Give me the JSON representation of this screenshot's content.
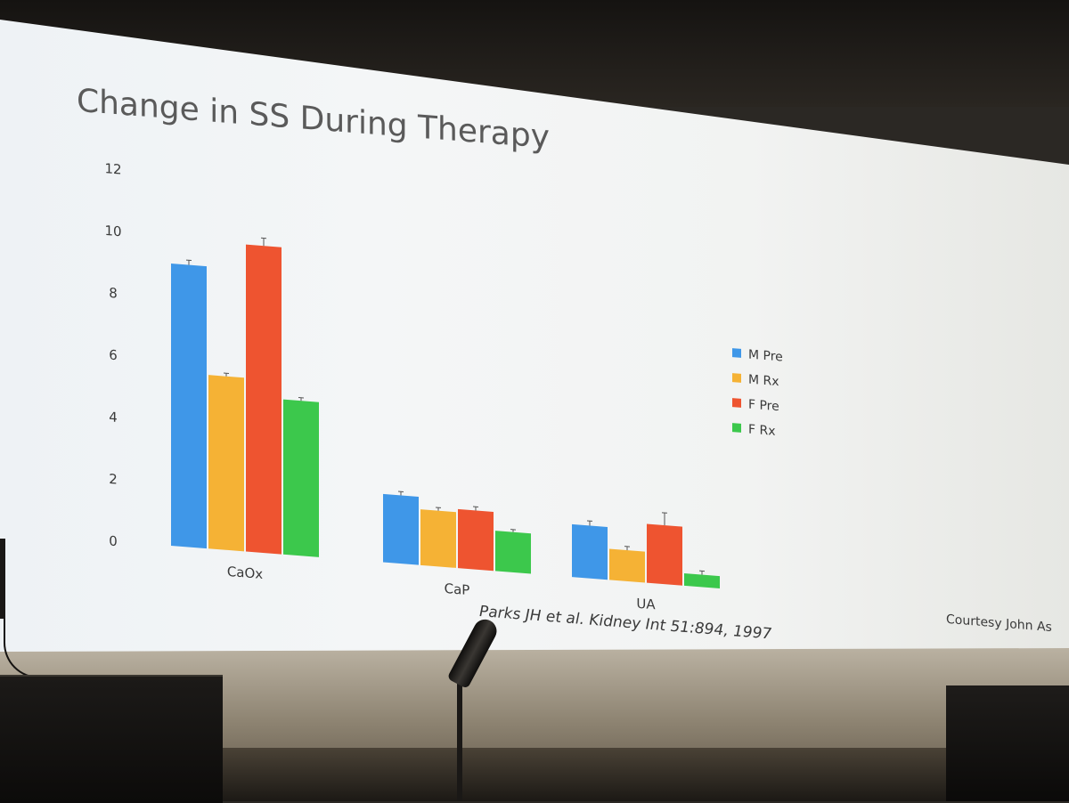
{
  "slide": {
    "title": "Change in SS During Therapy",
    "citation": "Parks JH et al. Kidney Int 51:894, 1997",
    "credit": "Courtesy John As"
  },
  "colors": {
    "M Pre": "#3f97e8",
    "M Rx": "#f5b235",
    "F Pre": "#ee5430",
    "F Rx": "#3cc84c"
  },
  "chart_data": {
    "type": "bar",
    "title": "Change in SS During Therapy",
    "xlabel": "",
    "ylabel": "",
    "ylim": [
      0,
      12
    ],
    "yticks": [
      "0",
      "2",
      "4",
      "6",
      "8",
      "10",
      "12"
    ],
    "categories": [
      "CaOx",
      "CaP",
      "UA"
    ],
    "series": [
      {
        "name": "M Pre",
        "values": [
          9.1,
          2.2,
          1.7
        ],
        "errors": [
          0.15,
          0.12,
          0.15
        ]
      },
      {
        "name": "M Rx",
        "values": [
          5.6,
          1.8,
          1.0
        ],
        "errors": [
          0.1,
          0.1,
          0.12
        ]
      },
      {
        "name": "F Pre",
        "values": [
          9.9,
          1.9,
          1.9
        ],
        "errors": [
          0.25,
          0.12,
          0.4
        ]
      },
      {
        "name": "F Rx",
        "values": [
          5.0,
          1.3,
          0.4
        ],
        "errors": [
          0.1,
          0.08,
          0.12
        ]
      }
    ],
    "legend": "right",
    "grid": false
  }
}
